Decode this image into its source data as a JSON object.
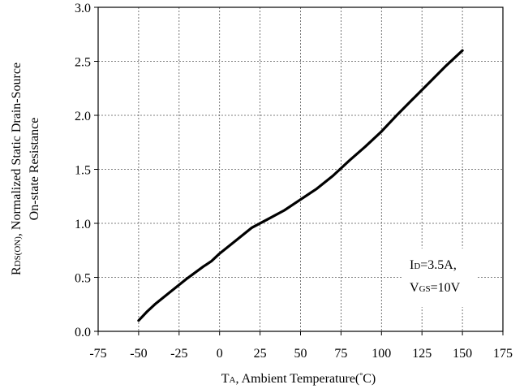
{
  "chart_data": {
    "type": "line",
    "xlabel": {
      "main": "T",
      "sub": "A",
      "rest": ", Ambient Temperature(",
      "degree": "°",
      "unit": "C)"
    },
    "ylabel": {
      "line1_main": "R",
      "line1_sub": "DS(ON)",
      "line1_rest": ", Normalized Static Drain-Source",
      "line2": "On-state Resistance"
    },
    "xlim": [
      -75,
      175
    ],
    "ylim": [
      0.0,
      3.0
    ],
    "xticks": [
      "-75",
      "-50",
      "-25",
      "0",
      "25",
      "50",
      "75",
      "100",
      "125",
      "150",
      "175"
    ],
    "yticks": [
      "0.0",
      "0.5",
      "1.0",
      "1.5",
      "2.0",
      "2.5",
      "3.0"
    ],
    "xtick_values": [
      -75,
      -50,
      -25,
      0,
      25,
      50,
      75,
      100,
      125,
      150,
      175
    ],
    "ytick_values": [
      0.0,
      0.5,
      1.0,
      1.5,
      2.0,
      2.5,
      3.0
    ],
    "grid": true,
    "grid_style": "dotted",
    "line_color": "#000000",
    "series": [
      {
        "x": [
          -50,
          -45,
          -40,
          -30,
          -20,
          -10,
          -5,
          0,
          10,
          20,
          30,
          40,
          50,
          60,
          70,
          80,
          90,
          100,
          110,
          120,
          130,
          140,
          150
        ],
        "y": [
          0.1,
          0.18,
          0.25,
          0.37,
          0.49,
          0.6,
          0.65,
          0.72,
          0.84,
          0.96,
          1.04,
          1.12,
          1.22,
          1.32,
          1.44,
          1.58,
          1.71,
          1.85,
          2.01,
          2.16,
          2.31,
          2.46,
          2.6
        ]
      }
    ],
    "annotation": {
      "line1_main": "I",
      "line1_sub": "D",
      "line1_rest": "=3.5A,",
      "line2_main": "V",
      "line2_sub": "GS",
      "line2_rest": "=10V"
    }
  }
}
